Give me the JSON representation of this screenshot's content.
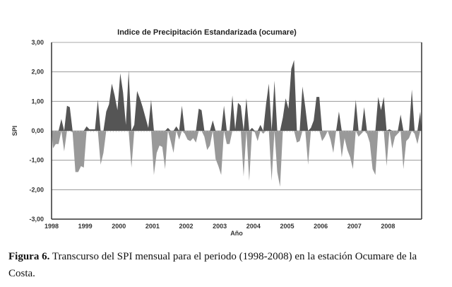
{
  "chart_data": {
    "type": "area",
    "title": "Indice de Precipitación Estandarizada (ocumare)",
    "xlabel": "Año",
    "ylabel": "SPI",
    "ylim": [
      -3,
      3
    ],
    "yticks": [
      3,
      2,
      1,
      0,
      -1,
      -2,
      -3
    ],
    "ytick_labels": [
      "3,00",
      "2,00",
      "1,00",
      "0,00",
      "-1,00",
      "-2,00",
      "-3,00"
    ],
    "xtick_labels": [
      "1998",
      "1999",
      "2000",
      "2001",
      "2002",
      "2003",
      "2004",
      "2005",
      "2006",
      "2007",
      "2008"
    ],
    "grid": true,
    "legend": "none",
    "positive_color": "#555555",
    "negative_color": "#999999",
    "series": [
      {
        "name": "SPI mensual",
        "start": "1998-01",
        "frequency": "monthly",
        "values": [
          -0.6,
          -0.45,
          -0.45,
          0.4,
          -0.7,
          0.85,
          0.8,
          -0.05,
          -1.4,
          -1.4,
          -1.2,
          -1.25,
          0.15,
          0.05,
          0.05,
          0.05,
          1.05,
          -1.15,
          -0.75,
          0.65,
          0.9,
          1.6,
          1.2,
          0.7,
          1.95,
          1.3,
          0.2,
          2.05,
          -1.25,
          0.2,
          1.35,
          1.1,
          0.8,
          0.45,
          0.1,
          1.05,
          -1.5,
          -0.75,
          -0.5,
          -0.55,
          -1.3,
          0.1,
          -0.35,
          -0.75,
          0.15,
          -0.3,
          0.85,
          -0.1,
          -0.3,
          -0.35,
          -0.25,
          -0.4,
          0.75,
          0.7,
          -0.2,
          -0.65,
          -0.5,
          0.35,
          -0.95,
          -1.2,
          -1.5,
          0.85,
          -0.45,
          -0.45,
          1.2,
          0.05,
          0.95,
          0.85,
          -1.55,
          1.1,
          -1.7,
          0.1,
          -0.05,
          -0.35,
          0.2,
          -0.1,
          0.9,
          1.6,
          -1.7,
          1.7,
          -1.4,
          -1.9,
          0.45,
          1.1,
          0.75,
          2.1,
          2.4,
          -0.4,
          -0.35,
          1.5,
          0.8,
          -1.15,
          0.1,
          0.35,
          1.15,
          1.15,
          -0.35,
          -0.2,
          0.0,
          -0.3,
          -0.75,
          0.0,
          0.65,
          -0.9,
          -0.25,
          -0.65,
          -0.9,
          -1.3,
          1.05,
          -0.2,
          -0.1,
          0.8,
          -0.1,
          -0.4,
          -1.3,
          -1.5,
          1.15,
          0.7,
          1.15,
          -1.2,
          0.05,
          -0.6,
          -0.2,
          -0.1,
          0.55,
          -1.3,
          -0.35,
          -0.25,
          1.4,
          -0.1,
          -0.45,
          0.65
        ]
      }
    ]
  },
  "caption": {
    "label": "Figura 6.",
    "text": " Transcurso del SPI mensual para el periodo (1998-2008) en la estación Ocumare de la Costa."
  }
}
